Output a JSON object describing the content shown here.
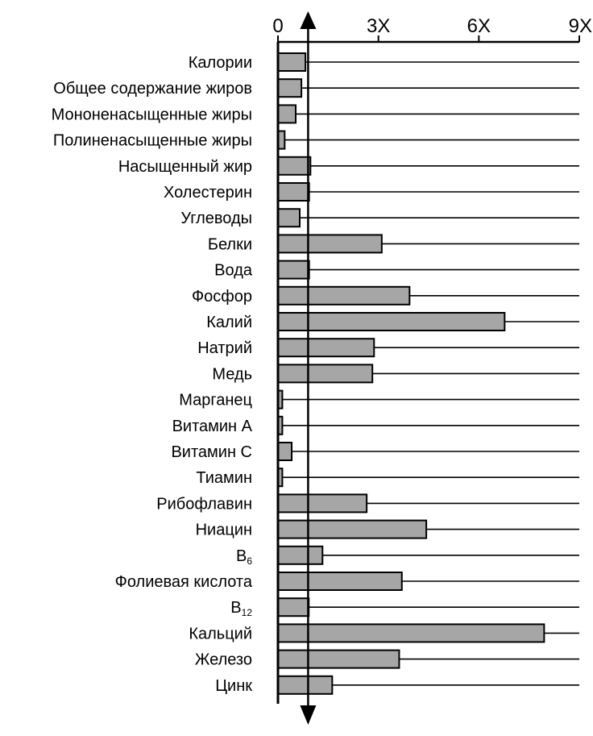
{
  "chart_data": {
    "type": "bar",
    "orientation": "horizontal",
    "x_ticks": [
      "0",
      "3X",
      "6X",
      "9X"
    ],
    "x_tick_values": [
      0,
      3,
      6,
      9
    ],
    "xlim": [
      0,
      9
    ],
    "reference_line": 0.9,
    "grid": false,
    "bar_color": "#a6a6a6",
    "categories": [
      {
        "label": "Калории",
        "sub": "",
        "value": 0.82
      },
      {
        "label": "Общее содержание жиров",
        "sub": "",
        "value": 0.7
      },
      {
        "label": "Мононенасыщенные жиры",
        "sub": "",
        "value": 0.53
      },
      {
        "label": "Полиненасыщенные жиры",
        "sub": "",
        "value": 0.2
      },
      {
        "label": "Насыщенный жир",
        "sub": "",
        "value": 0.97
      },
      {
        "label": "Холестерин",
        "sub": "",
        "value": 0.93
      },
      {
        "label": "Углеводы",
        "sub": "",
        "value": 0.65
      },
      {
        "label": "Белки",
        "sub": "",
        "value": 3.1
      },
      {
        "label": "Вода",
        "sub": "",
        "value": 0.93
      },
      {
        "label": "Фосфор",
        "sub": "",
        "value": 3.93
      },
      {
        "label": "Калий",
        "sub": "",
        "value": 6.77
      },
      {
        "label": "Натрий",
        "sub": "",
        "value": 2.87
      },
      {
        "label": "Медь",
        "sub": "",
        "value": 2.82
      },
      {
        "label": "Марганец",
        "sub": "",
        "value": 0.13
      },
      {
        "label": "Витамин А",
        "sub": "",
        "value": 0.13
      },
      {
        "label": "Витамин С",
        "sub": "",
        "value": 0.41
      },
      {
        "label": "Тиамин",
        "sub": "",
        "value": 0.13
      },
      {
        "label": "Рибофлавин",
        "sub": "",
        "value": 2.65
      },
      {
        "label": "Ниацин",
        "sub": "",
        "value": 4.43
      },
      {
        "label": "B",
        "sub": "6",
        "value": 1.33
      },
      {
        "label": "Фолиевая кислота",
        "sub": "",
        "value": 3.7
      },
      {
        "label": "B",
        "sub": "12",
        "value": 0.92
      },
      {
        "label": "Кальций",
        "sub": "",
        "value": 7.95
      },
      {
        "label": "Железо",
        "sub": "",
        "value": 3.62
      },
      {
        "label": "Цинк",
        "sub": "",
        "value": 1.62
      }
    ]
  }
}
